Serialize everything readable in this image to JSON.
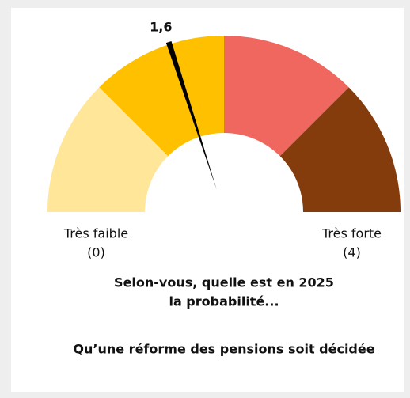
{
  "chart_data": {
    "type": "gauge",
    "title": [
      "Selon-vous, quelle est en 2025",
      "la probabilité..."
    ],
    "subtitle": "Qu’une réforme des pensions soit décidée",
    "range": [
      0,
      4
    ],
    "range_labels": [
      {
        "name": "Très faible",
        "value": 0,
        "label": "(0)"
      },
      {
        "name": "Très forte",
        "value": 4,
        "label": "(4)"
      }
    ],
    "bands": [
      {
        "from": 0,
        "to": 1,
        "color": "#ffe699"
      },
      {
        "from": 1,
        "to": 2,
        "color": "#ffc000"
      },
      {
        "from": 2,
        "to": 3,
        "color": "#f0675f"
      },
      {
        "from": 3,
        "to": 4,
        "color": "#843c0c"
      }
    ],
    "value": 1.6,
    "value_label": "1,6",
    "needle_color": "#000000"
  }
}
